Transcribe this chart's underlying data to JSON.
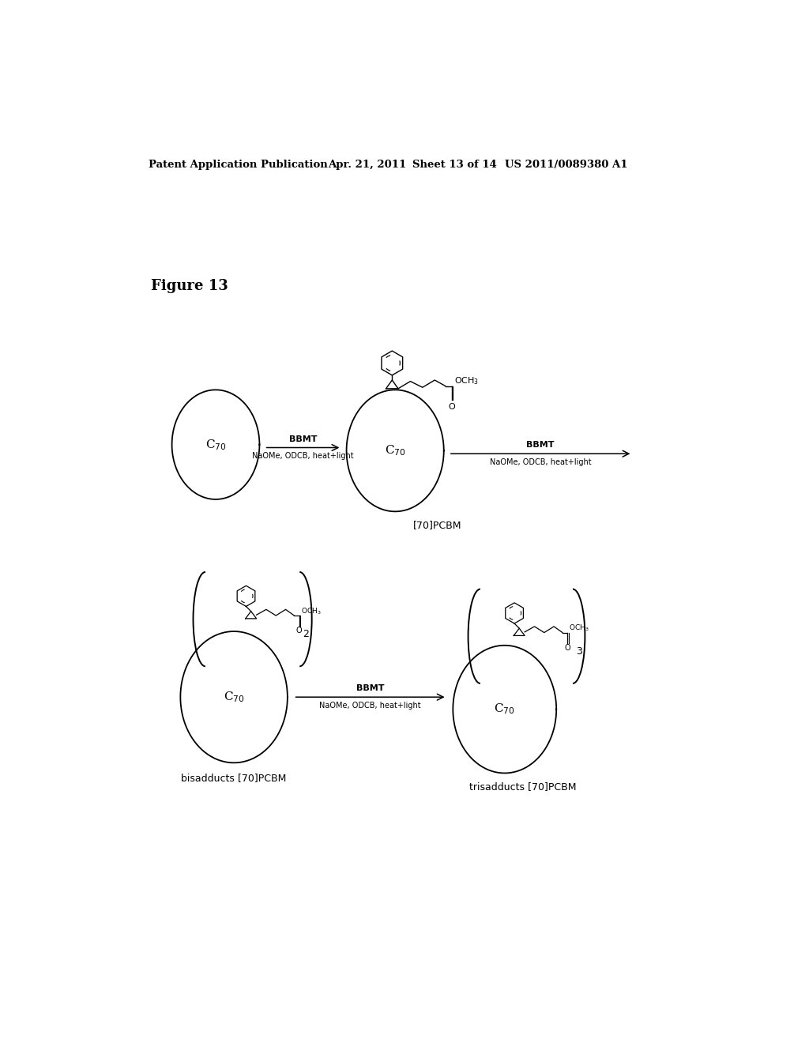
{
  "bg": "#ffffff",
  "header": "Patent Application Publication     Apr. 21, 2011  Sheet 13 of 14     US 2011/0089380 A1",
  "fig_label": "Figure 13",
  "bbmt": "BBMT",
  "conditions": "NaOMe, ODCB, heat+light",
  "label_70pcbm": "[70]PCBM",
  "label_bis": "bisadducts [70]PCBM",
  "label_tris": "trisadducts [70]PCBM"
}
